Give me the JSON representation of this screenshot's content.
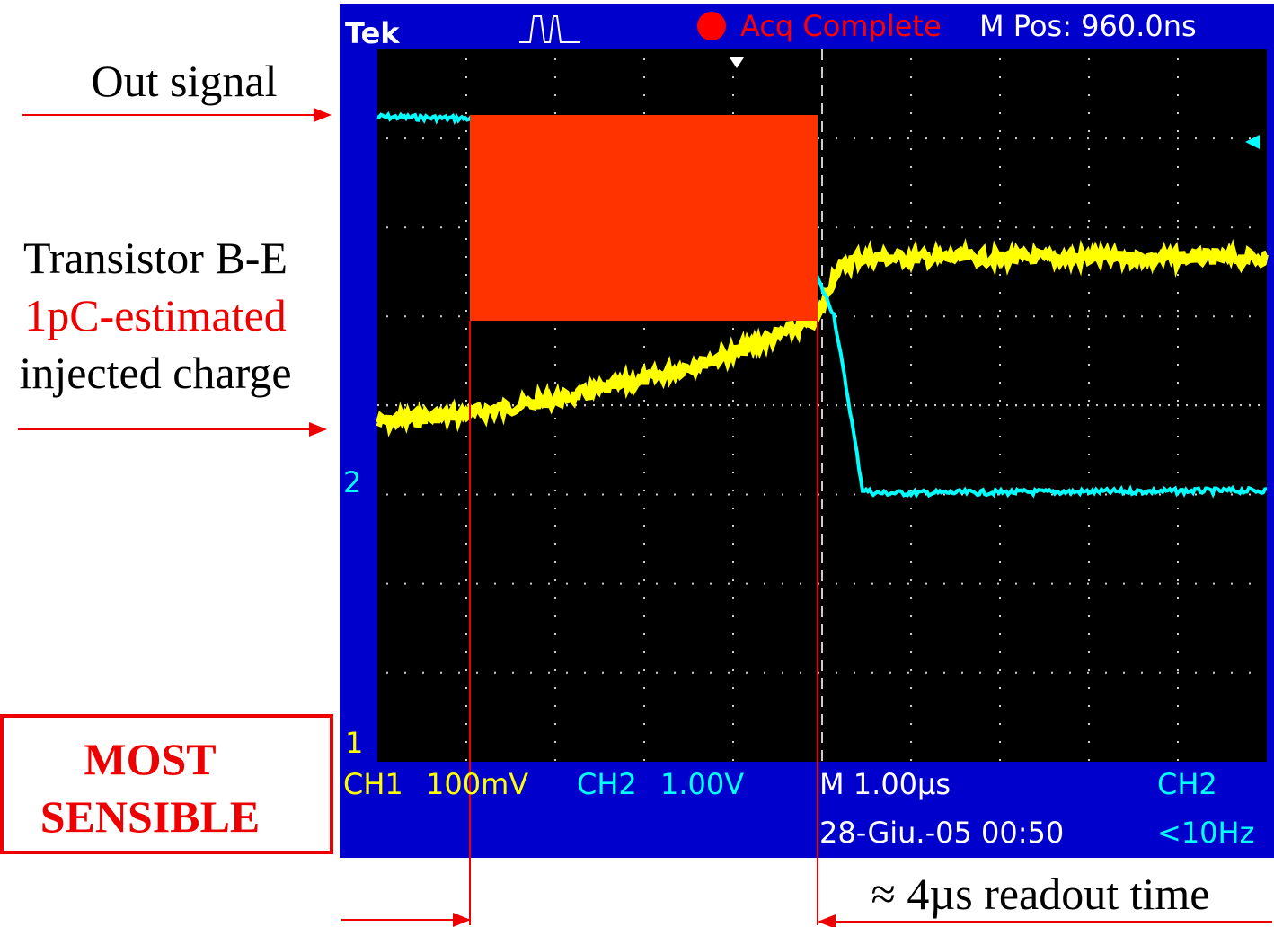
{
  "annotations": {
    "out_signal": "Out signal",
    "transistor": "Transistor B-E",
    "estimate": "1pC-estimated",
    "injected": "injected charge",
    "box": [
      "MOST",
      "SENSIBLE"
    ],
    "readout": "≈ 4µs readout time"
  },
  "scope": {
    "brand": "Tek",
    "status": "Acq Complete",
    "position": "M Pos: 960.0ns",
    "ch1": {
      "label": "CH1",
      "scale": "100mV",
      "marker": "1"
    },
    "ch2": {
      "label": "CH2",
      "scale": "1.00V",
      "marker": "2"
    },
    "timebase": "M 1.00µs",
    "date": "28-Giu.-05 00:50",
    "trigger": "CH2",
    "frequency": "<10Hz"
  }
}
